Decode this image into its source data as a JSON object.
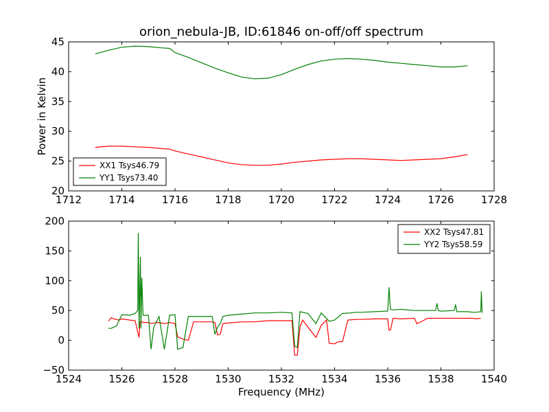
{
  "chart_data": [
    {
      "type": "line",
      "title": "orion_nebula-JB, ID:61846 on-off/off spectrum",
      "xlabel": "",
      "ylabel": "Power in Kelvin",
      "xlim": [
        1712,
        1728
      ],
      "ylim": [
        20,
        45
      ],
      "xticks": [
        "1712",
        "1714",
        "1716",
        "1718",
        "1720",
        "1722",
        "1724",
        "1726",
        "1728"
      ],
      "yticks": [
        "20",
        "25",
        "30",
        "35",
        "40",
        "45"
      ],
      "legend_position": "lower-left",
      "series": [
        {
          "name": "XX1 Tsys46.79",
          "color": "#ff0000",
          "x": [
            1713.0,
            1713.5,
            1714.0,
            1714.5,
            1715.0,
            1715.5,
            1715.8,
            1716.0,
            1716.5,
            1717.0,
            1717.5,
            1718.0,
            1718.5,
            1719.0,
            1719.5,
            1720.0,
            1720.5,
            1721.0,
            1721.5,
            1722.0,
            1722.5,
            1723.0,
            1723.5,
            1724.0,
            1724.5,
            1725.0,
            1725.5,
            1726.0,
            1726.5,
            1727.0
          ],
          "y": [
            27.3,
            27.5,
            27.5,
            27.4,
            27.3,
            27.1,
            27.0,
            26.7,
            26.2,
            25.7,
            25.2,
            24.7,
            24.4,
            24.3,
            24.3,
            24.5,
            24.8,
            25.0,
            25.2,
            25.3,
            25.4,
            25.4,
            25.3,
            25.2,
            25.1,
            25.2,
            25.3,
            25.4,
            25.7,
            26.1
          ]
        },
        {
          "name": "YY1 Tsys73.40",
          "color": "#008000",
          "x": [
            1713.0,
            1713.5,
            1714.0,
            1714.5,
            1715.0,
            1715.5,
            1715.8,
            1716.0,
            1716.5,
            1717.0,
            1717.5,
            1718.0,
            1718.5,
            1719.0,
            1719.5,
            1720.0,
            1720.5,
            1721.0,
            1721.5,
            1722.0,
            1722.5,
            1723.0,
            1723.5,
            1724.0,
            1724.5,
            1725.0,
            1725.5,
            1726.0,
            1726.5,
            1727.0
          ],
          "y": [
            43.0,
            43.6,
            44.1,
            44.3,
            44.2,
            44.0,
            43.9,
            43.2,
            42.4,
            41.5,
            40.6,
            39.8,
            39.1,
            38.8,
            38.9,
            39.5,
            40.4,
            41.2,
            41.8,
            42.1,
            42.2,
            42.1,
            41.9,
            41.6,
            41.4,
            41.2,
            41.0,
            40.8,
            40.8,
            41.0
          ]
        }
      ]
    },
    {
      "type": "line",
      "title": "",
      "xlabel": "Frequency (MHz)",
      "ylabel": "",
      "xlim": [
        1524,
        1540
      ],
      "ylim": [
        -50,
        200
      ],
      "xticks": [
        "1524",
        "1526",
        "1528",
        "1530",
        "1532",
        "1534",
        "1536",
        "1538",
        "1540"
      ],
      "yticks": [
        "−50",
        "0",
        "50",
        "100",
        "150",
        "200"
      ],
      "legend_position": "top-right",
      "series": [
        {
          "name": "XX2 Tsys47.81",
          "color": "#ff0000",
          "x": [
            1525.5,
            1525.6,
            1525.7,
            1525.9,
            1526.0,
            1526.3,
            1526.5,
            1526.62,
            1526.65,
            1526.68,
            1526.72,
            1526.8,
            1527.0,
            1527.1,
            1527.3,
            1527.5,
            1527.6,
            1527.8,
            1528.0,
            1528.1,
            1528.3,
            1528.5,
            1528.7,
            1529.0,
            1529.4,
            1529.5,
            1529.6,
            1529.7,
            1529.8,
            1530.0,
            1530.5,
            1531.0,
            1531.5,
            1532.0,
            1532.4,
            1532.5,
            1532.6,
            1532.7,
            1532.8,
            1533.0,
            1533.3,
            1533.5,
            1533.7,
            1533.8,
            1534.0,
            1534.1,
            1534.3,
            1534.5,
            1534.8,
            1535.0,
            1535.5,
            1536.0,
            1536.05,
            1536.1,
            1536.2,
            1536.5,
            1537.0,
            1537.1,
            1537.2,
            1537.5,
            1537.8,
            1538.0,
            1538.3,
            1538.5,
            1538.8,
            1539.0,
            1539.2,
            1539.3,
            1539.5
          ],
          "y": [
            32,
            38,
            36,
            34,
            36,
            34,
            33,
            10,
            5,
            30,
            32,
            30,
            30,
            28,
            30,
            29,
            28,
            30,
            28,
            6,
            2,
            0,
            31,
            31,
            31,
            30,
            9,
            10,
            28,
            29,
            31,
            31,
            33,
            33,
            33,
            -25,
            -25,
            22,
            34,
            22,
            5,
            25,
            34,
            -5,
            -6,
            -3,
            -2,
            34,
            35,
            35,
            36,
            36,
            17,
            17,
            37,
            36,
            37,
            28,
            30,
            37,
            37,
            37,
            37,
            37,
            37,
            37,
            37,
            36,
            37
          ]
        },
        {
          "name": "YY2 Tsys58.59",
          "color": "#008000",
          "x": [
            1525.5,
            1525.6,
            1525.8,
            1526.0,
            1526.3,
            1526.5,
            1526.6,
            1526.62,
            1526.65,
            1526.7,
            1526.72,
            1526.75,
            1526.8,
            1527.0,
            1527.1,
            1527.2,
            1527.4,
            1527.6,
            1527.8,
            1528.0,
            1528.1,
            1528.3,
            1528.5,
            1528.6,
            1528.8,
            1529.0,
            1529.4,
            1529.5,
            1529.6,
            1529.7,
            1529.8,
            1530.0,
            1530.5,
            1531.0,
            1531.5,
            1532.0,
            1532.4,
            1532.5,
            1532.6,
            1532.7,
            1533.0,
            1533.3,
            1533.5,
            1533.8,
            1534.0,
            1534.3,
            1534.6,
            1534.8,
            1535.0,
            1535.5,
            1536.0,
            1536.05,
            1536.1,
            1536.2,
            1536.5,
            1537.0,
            1537.5,
            1537.8,
            1537.85,
            1537.9,
            1538.0,
            1538.5,
            1538.55,
            1538.6,
            1539.0,
            1539.2,
            1539.3,
            1539.5,
            1539.52,
            1539.55
          ],
          "y": [
            20,
            20,
            24,
            43,
            42,
            45,
            50,
            180,
            20,
            140,
            20,
            105,
            42,
            42,
            -15,
            22,
            40,
            -15,
            42,
            43,
            -15,
            -12,
            40,
            40,
            40,
            40,
            40,
            10,
            22,
            28,
            40,
            42,
            44,
            46,
            46,
            47,
            46,
            -10,
            -12,
            48,
            45,
            28,
            46,
            32,
            34,
            45,
            46,
            47,
            47,
            48,
            49,
            89,
            52,
            51,
            52,
            50,
            50,
            50,
            62,
            50,
            49,
            50,
            60,
            48,
            48,
            47,
            47,
            48,
            82,
            46
          ]
        }
      ]
    }
  ]
}
